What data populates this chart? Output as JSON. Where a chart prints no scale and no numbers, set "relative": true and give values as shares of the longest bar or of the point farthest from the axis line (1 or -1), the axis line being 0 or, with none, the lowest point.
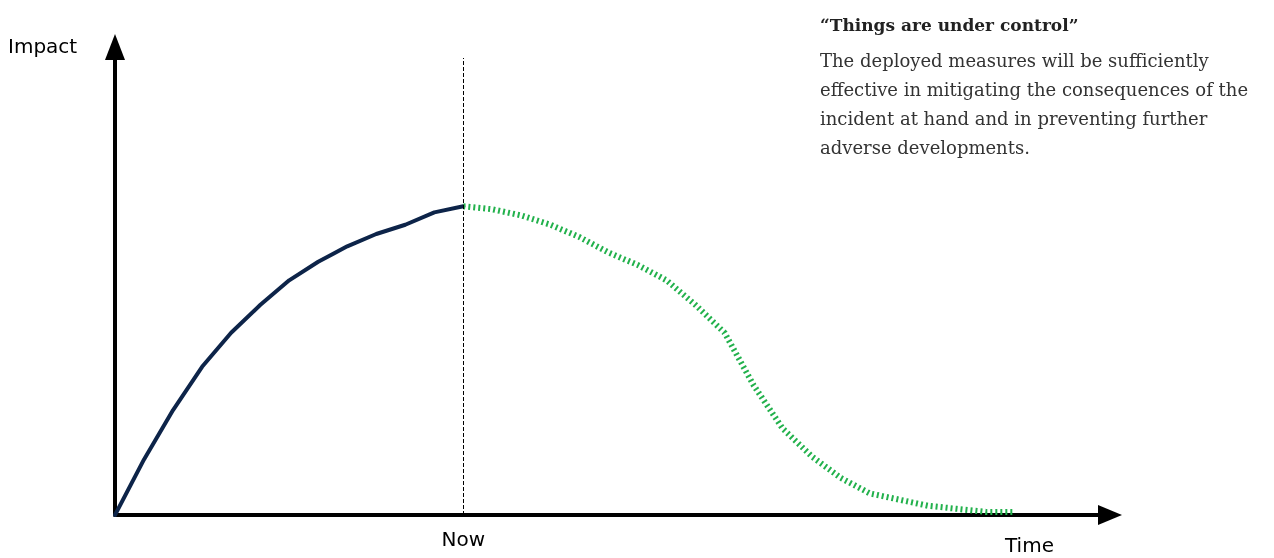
{
  "chart_data": {
    "type": "line",
    "relative": true,
    "title": "“Things are under control”",
    "annotations": [
      "The deployed measures will be sufficiently effective in mitigating the consequences of the incident at hand and in preventing further adverse developments.",
      "Now",
      "Impact"
    ],
    "xlabel": "Time",
    "grid": false,
    "marker": "none",
    "categories": [
      null,
      null,
      null,
      null,
      null,
      null,
      null,
      null,
      null,
      null,
      null,
      null,
      null,
      null,
      null,
      null,
      null,
      null,
      null,
      null,
      null,
      null,
      null,
      null,
      null,
      null,
      null,
      null,
      null,
      null,
      null,
      null,
      null,
      null,
      null
    ],
    "series": [
      {
        "color": "#0d2449",
        "line_style": "solid",
        "values": [
          0,
          0.18,
          0.34,
          0.48,
          0.59,
          0.68,
          0.76,
          0.82,
          0.87,
          0.91,
          0.94,
          0.98,
          1,
          null,
          null,
          null,
          null,
          null,
          null,
          null,
          null,
          null,
          null,
          null,
          null,
          null,
          null,
          null,
          null,
          null,
          null,
          null,
          null,
          null,
          null
        ]
      },
      {
        "color": "#22b14c",
        "line_style": "dotted",
        "values": [
          null,
          null,
          null,
          null,
          null,
          null,
          null,
          null,
          null,
          null,
          null,
          null,
          1,
          0.99,
          0.97,
          0.94,
          0.9,
          0.85,
          0.81,
          0.76,
          0.68,
          0.59,
          0.42,
          0.28,
          0.19,
          0.12,
          0.07,
          0.05,
          0.03,
          0.02,
          0.01,
          0.01,
          null,
          null,
          null
        ]
      }
    ]
  }
}
